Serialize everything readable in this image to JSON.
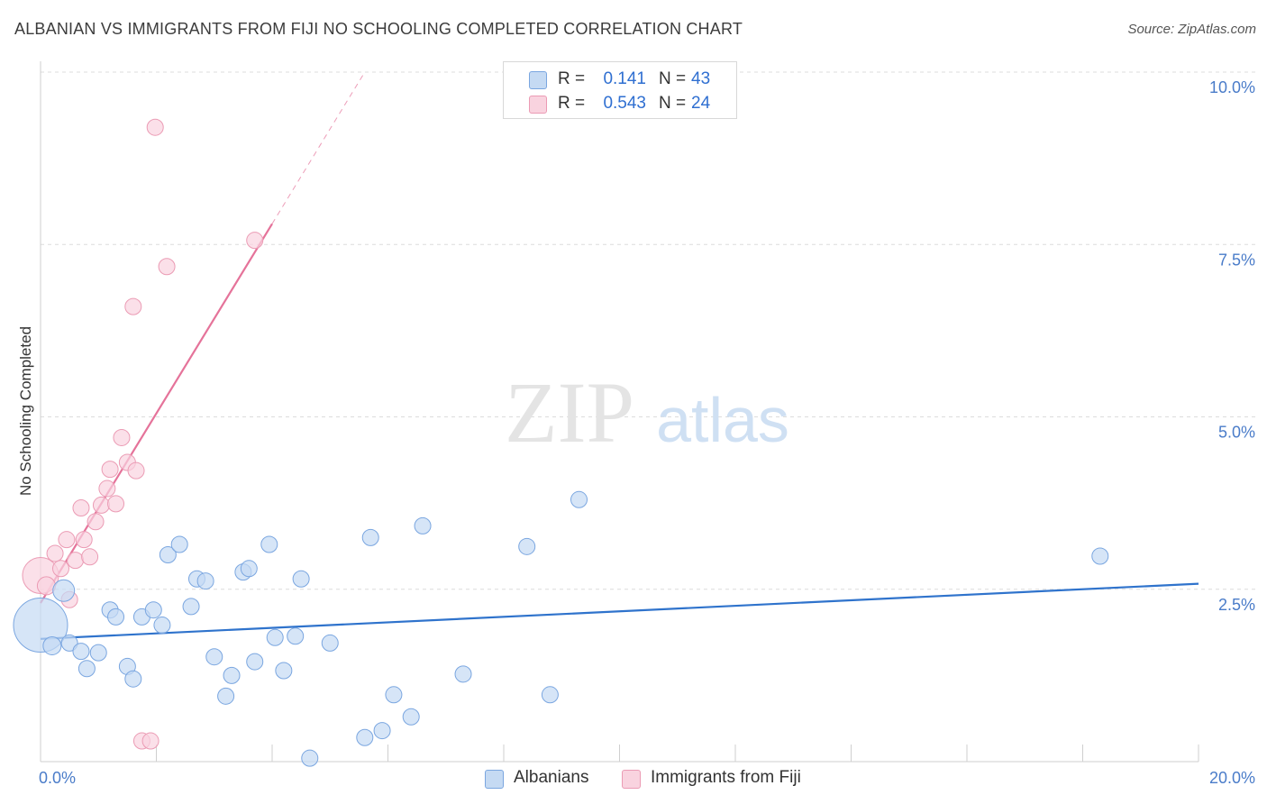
{
  "title": "ALBANIAN VS IMMIGRANTS FROM FIJI NO SCHOOLING COMPLETED CORRELATION CHART",
  "source": "Source: ZipAtlas.com",
  "watermark": {
    "zip": "ZIP",
    "atlas": "atlas"
  },
  "legend": {
    "rows": [
      {
        "r_label": "R =",
        "r_value": "0.141",
        "n_label": "N =",
        "n_value": "43"
      },
      {
        "r_label": "R =",
        "r_value": "0.543",
        "n_label": "N =",
        "n_value": "24"
      }
    ]
  },
  "bottom_legend": {
    "albanians": "Albanians",
    "fiji": "Immigrants from Fiji"
  },
  "colors": {
    "albanian_fill": "#c5daf3",
    "albanian_stroke": "#7aa6e0",
    "albanian_line": "#2f73cc",
    "fiji_fill": "#f9d3df",
    "fiji_stroke": "#eb9bb4",
    "fiji_line": "#e5739a",
    "tick": "#4a7cc9",
    "grid": "#dcdcdc"
  },
  "chart_data": {
    "type": "scatter",
    "title": "ALBANIAN VS IMMIGRANTS FROM FIJI NO SCHOOLING COMPLETED CORRELATION CHART",
    "xlabel": "",
    "ylabel": "No Schooling Completed",
    "xlim": [
      0,
      20
    ],
    "ylim": [
      0,
      10.0
    ],
    "x_ticks": [
      0,
      20
    ],
    "x_tick_labels": [
      "0.0%",
      "20.0%"
    ],
    "y_ticks": [
      2.5,
      5.0,
      7.5,
      10.0
    ],
    "y_tick_labels": [
      "2.5%",
      "5.0%",
      "7.5%",
      "10.0%"
    ],
    "grid": true,
    "legend_position": "top-center",
    "series": [
      {
        "name": "Albanians",
        "points": [
          [
            0.0,
            1.98
          ],
          [
            0.2,
            1.68
          ],
          [
            0.4,
            2.48
          ],
          [
            0.5,
            1.72
          ],
          [
            0.7,
            1.6
          ],
          [
            0.8,
            1.35
          ],
          [
            1.0,
            1.58
          ],
          [
            1.2,
            2.2
          ],
          [
            1.3,
            2.1
          ],
          [
            1.5,
            1.38
          ],
          [
            1.6,
            1.2
          ],
          [
            1.75,
            2.1
          ],
          [
            1.95,
            2.2
          ],
          [
            2.1,
            1.98
          ],
          [
            2.2,
            3.0
          ],
          [
            2.4,
            3.15
          ],
          [
            2.6,
            2.25
          ],
          [
            2.7,
            2.65
          ],
          [
            2.85,
            2.62
          ],
          [
            3.0,
            1.52
          ],
          [
            3.2,
            0.95
          ],
          [
            3.3,
            1.25
          ],
          [
            3.5,
            2.75
          ],
          [
            3.6,
            2.8
          ],
          [
            3.7,
            1.45
          ],
          [
            3.95,
            3.15
          ],
          [
            4.05,
            1.8
          ],
          [
            4.2,
            1.32
          ],
          [
            4.4,
            1.82
          ],
          [
            4.5,
            2.65
          ],
          [
            4.65,
            0.05
          ],
          [
            5.0,
            1.72
          ],
          [
            5.6,
            0.35
          ],
          [
            5.7,
            3.25
          ],
          [
            5.9,
            0.45
          ],
          [
            6.1,
            0.97
          ],
          [
            6.4,
            0.65
          ],
          [
            6.6,
            3.42
          ],
          [
            7.3,
            1.27
          ],
          [
            8.4,
            3.12
          ],
          [
            8.8,
            0.97
          ],
          [
            9.3,
            3.8
          ],
          [
            18.3,
            2.98
          ]
        ],
        "sizes": [
          30,
          10,
          12,
          9,
          9,
          9,
          9,
          9,
          9,
          9,
          9,
          9,
          9,
          9,
          9,
          9,
          9,
          9,
          9,
          9,
          9,
          9,
          9,
          9,
          9,
          9,
          9,
          9,
          9,
          9,
          9,
          9,
          9,
          9,
          9,
          9,
          9,
          9,
          9,
          9,
          9,
          9,
          9
        ],
        "trend": {
          "x": [
            0,
            20
          ],
          "y": [
            1.78,
            2.58
          ]
        }
      },
      {
        "name": "Immigrants from Fiji",
        "points": [
          [
            0.0,
            2.7
          ],
          [
            0.1,
            2.55
          ],
          [
            0.25,
            3.02
          ],
          [
            0.35,
            2.8
          ],
          [
            0.45,
            3.22
          ],
          [
            0.5,
            2.35
          ],
          [
            0.6,
            2.92
          ],
          [
            0.7,
            3.68
          ],
          [
            0.75,
            3.22
          ],
          [
            0.85,
            2.97
          ],
          [
            0.95,
            3.48
          ],
          [
            1.05,
            3.72
          ],
          [
            1.15,
            3.96
          ],
          [
            1.2,
            4.24
          ],
          [
            1.3,
            3.74
          ],
          [
            1.4,
            4.7
          ],
          [
            1.5,
            4.34
          ],
          [
            1.6,
            6.6
          ],
          [
            1.65,
            4.22
          ],
          [
            1.75,
            0.3
          ],
          [
            1.9,
            0.3
          ],
          [
            1.98,
            9.2
          ],
          [
            2.18,
            7.18
          ],
          [
            3.7,
            7.56
          ]
        ],
        "sizes": [
          20,
          10,
          9,
          9,
          9,
          9,
          9,
          9,
          9,
          9,
          9,
          9,
          9,
          9,
          9,
          9,
          9,
          9,
          9,
          9,
          9,
          9,
          9,
          9
        ],
        "trend": {
          "x": [
            0,
            4.0
          ],
          "y": [
            2.3,
            7.8
          ]
        },
        "trend_extension": {
          "x": [
            4.0,
            5.6
          ],
          "y": [
            7.8,
            10.0
          ]
        }
      }
    ]
  }
}
